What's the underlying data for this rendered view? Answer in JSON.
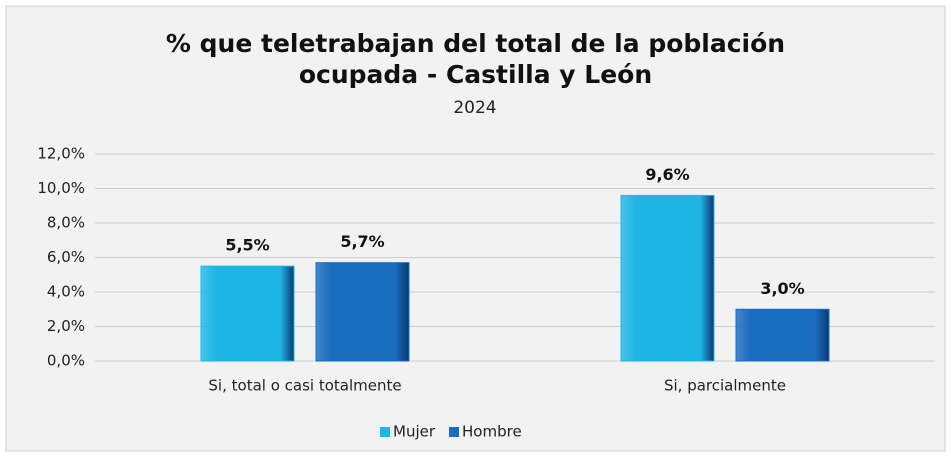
{
  "chart_data": {
    "type": "bar",
    "title": "% que teletrabajan del total de la población ocupada - Castilla y León",
    "subtitle": "2024",
    "categories": [
      "Si, total o casi totalmente",
      "Si, parcialmente"
    ],
    "series": [
      {
        "name": "Mujer",
        "color": "#1fb6e6",
        "values": [
          5.5,
          9.6
        ],
        "value_labels": [
          "5,5%",
          "9,6%"
        ]
      },
      {
        "name": "Hombre",
        "color": "#1a6cc0",
        "values": [
          5.7,
          3.0
        ],
        "value_labels": [
          "5,7%",
          "3,0%"
        ]
      }
    ],
    "ylim": [
      0,
      12
    ],
    "yticks": [
      {
        "value": 0,
        "label": "0,0%"
      },
      {
        "value": 2,
        "label": "2,0%"
      },
      {
        "value": 4,
        "label": "4,0%"
      },
      {
        "value": 6,
        "label": "6,0%"
      },
      {
        "value": 8,
        "label": "8,0%"
      },
      {
        "value": 10,
        "label": "10,0%"
      },
      {
        "value": 12,
        "label": "12,0%"
      }
    ],
    "grid": true,
    "legend": "bottom"
  }
}
